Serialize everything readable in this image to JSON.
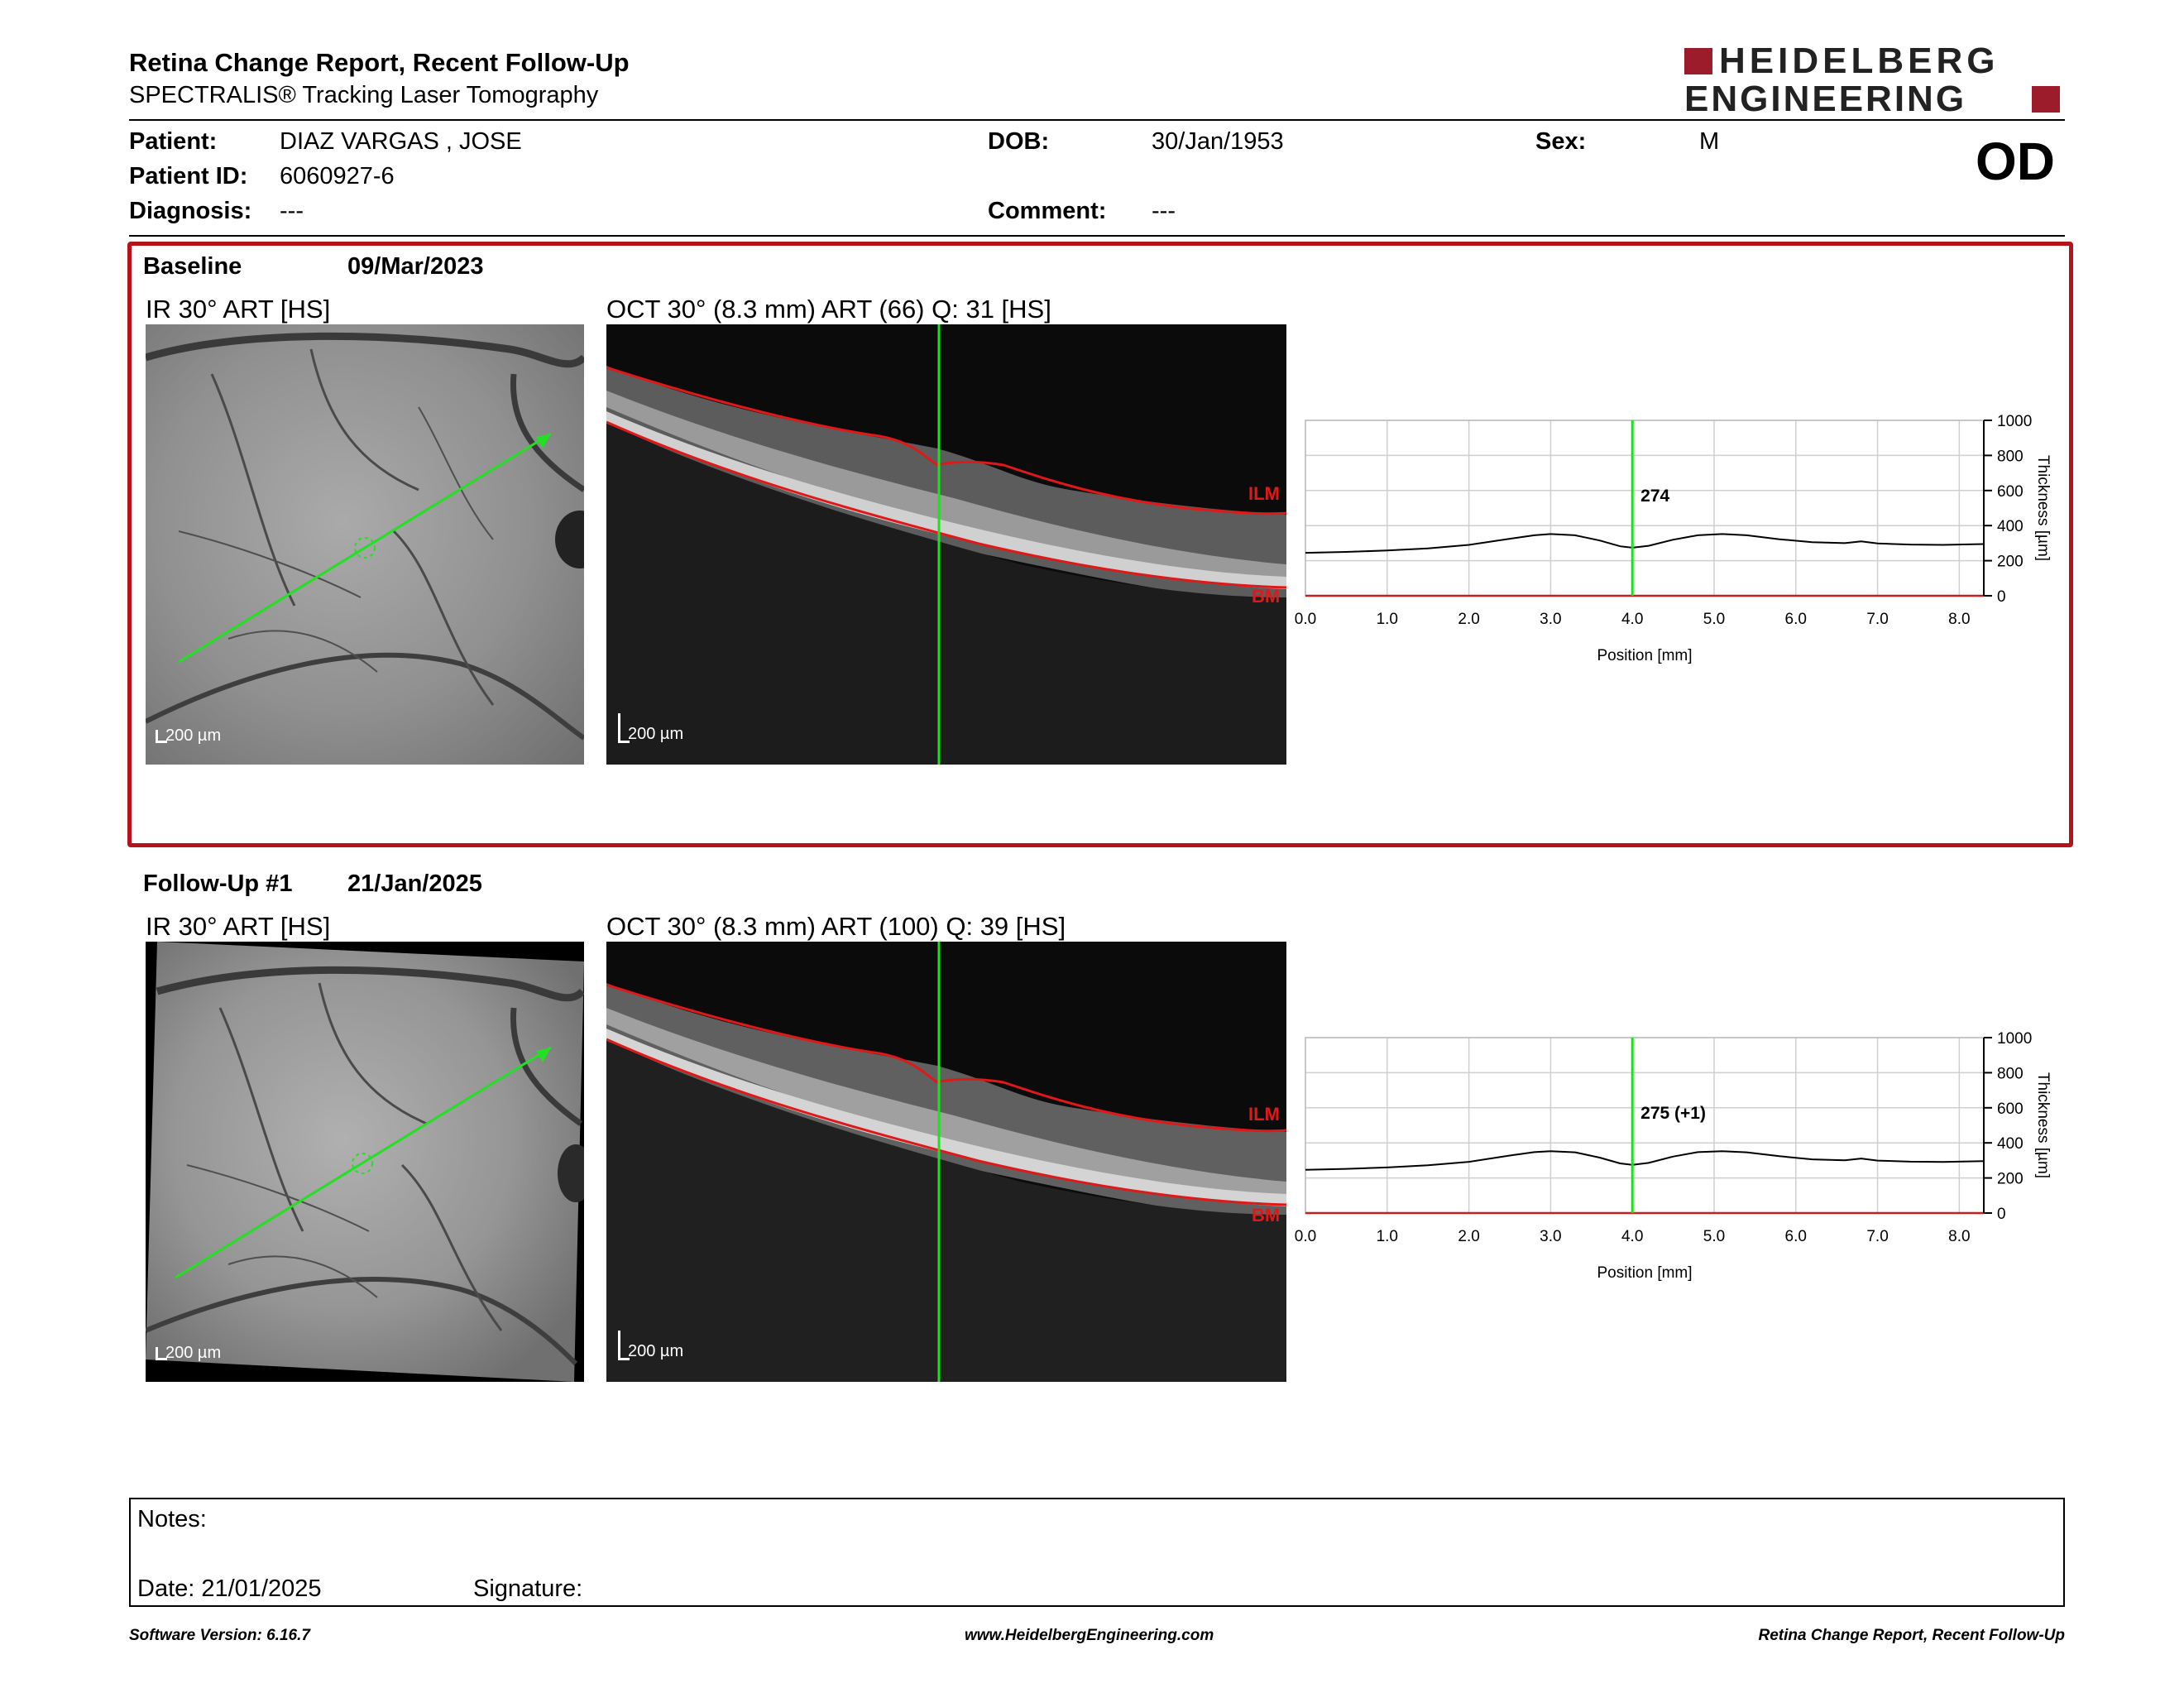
{
  "header": {
    "title": "Retina Change Report, Recent Follow-Up",
    "subtitle": "SPECTRALIS® Tracking Laser Tomography",
    "logo_line1": "HEIDELBERG",
    "logo_line2": "ENGINEERING"
  },
  "patient": {
    "patient_label": "Patient:",
    "patient_value": "DIAZ VARGAS , JOSE",
    "id_label": "Patient ID:",
    "id_value": "6060927-6",
    "diagnosis_label": "Diagnosis:",
    "diagnosis_value": "---",
    "dob_label": "DOB:",
    "dob_value": "30/Jan/1953",
    "comment_label": "Comment:",
    "comment_value": "---",
    "sex_label": "Sex:",
    "sex_value": "M",
    "eye": "OD"
  },
  "baseline": {
    "label": "Baseline",
    "date": "09/Mar/2023",
    "ir_label": "IR 30° ART [HS]",
    "oct_label": "OCT 30° (8.3 mm) ART (66) Q: 31 [HS]",
    "ir_scale": "200 µm",
    "oct_scale": "200 µm",
    "ilm": "ILM",
    "bm": "BM"
  },
  "followup": {
    "label": "Follow-Up #1",
    "date": "21/Jan/2025",
    "ir_label": "IR 30° ART [HS]",
    "oct_label": "OCT 30° (8.3 mm) ART (100) Q: 39 [HS]",
    "ir_scale": "200 µm",
    "oct_scale": "200 µm",
    "ilm": "ILM",
    "bm": "BM"
  },
  "chart_data": [
    {
      "type": "line",
      "title": "",
      "xlabel": "Position [mm]",
      "ylabel": "Thickness [µm]",
      "xlim": [
        0,
        8.3
      ],
      "ylim": [
        0,
        1000
      ],
      "x_ticks": [
        "0.0",
        "1.0",
        "2.0",
        "3.0",
        "4.0",
        "5.0",
        "6.0",
        "7.0",
        "8.0"
      ],
      "y_ticks": [
        "0",
        "200",
        "400",
        "600",
        "800",
        "1000"
      ],
      "grid": true,
      "marker_x": 4.0,
      "marker_label": "274",
      "series": [
        {
          "x": [
            0,
            0.5,
            1.0,
            1.5,
            2.0,
            2.5,
            2.8,
            3.0,
            3.3,
            3.6,
            3.85,
            4.0,
            4.2,
            4.5,
            4.8,
            5.1,
            5.4,
            5.8,
            6.2,
            6.6,
            6.8,
            7.0,
            7.4,
            7.8,
            8.3
          ],
          "y": [
            245,
            250,
            258,
            270,
            290,
            325,
            345,
            352,
            345,
            315,
            282,
            274,
            285,
            320,
            345,
            352,
            345,
            322,
            305,
            300,
            310,
            298,
            292,
            290,
            295
          ]
        }
      ]
    },
    {
      "type": "line",
      "title": "",
      "xlabel": "Position [mm]",
      "ylabel": "Thickness [µm]",
      "xlim": [
        0,
        8.3
      ],
      "ylim": [
        0,
        1000
      ],
      "x_ticks": [
        "0.0",
        "1.0",
        "2.0",
        "3.0",
        "4.0",
        "5.0",
        "6.0",
        "7.0",
        "8.0"
      ],
      "y_ticks": [
        "0",
        "200",
        "400",
        "600",
        "800",
        "1000"
      ],
      "grid": true,
      "marker_x": 4.0,
      "marker_label": "275 (+1)",
      "series": [
        {
          "x": [
            0,
            0.5,
            1.0,
            1.5,
            2.0,
            2.5,
            2.8,
            3.0,
            3.3,
            3.6,
            3.85,
            4.0,
            4.2,
            4.5,
            4.8,
            5.1,
            5.4,
            5.8,
            6.2,
            6.6,
            6.8,
            7.0,
            7.4,
            7.8,
            8.3
          ],
          "y": [
            246,
            252,
            260,
            272,
            292,
            328,
            347,
            353,
            346,
            316,
            283,
            275,
            286,
            322,
            347,
            353,
            346,
            324,
            306,
            301,
            311,
            299,
            293,
            291,
            296
          ]
        }
      ]
    }
  ],
  "notes": {
    "notes_label": "Notes:",
    "date_label": "Date: 21/01/2025",
    "signature_label": "Signature:"
  },
  "footer": {
    "left": "Software Version: 6.16.7",
    "center": "www.HeidelbergEngineering.com",
    "right": "Retina Change Report, Recent Follow-Up"
  }
}
